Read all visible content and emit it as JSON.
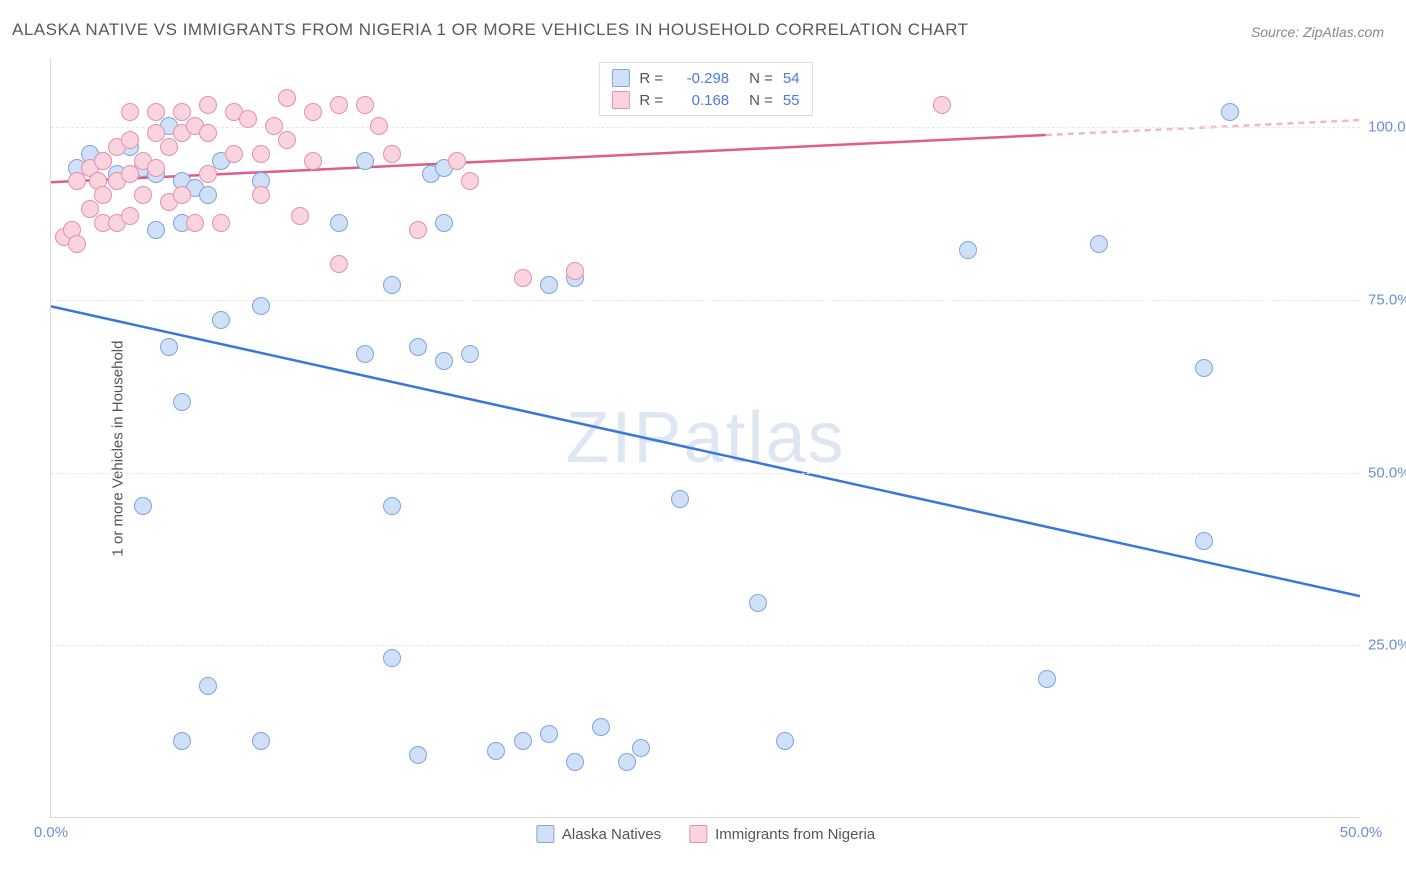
{
  "title": "ALASKA NATIVE VS IMMIGRANTS FROM NIGERIA 1 OR MORE VEHICLES IN HOUSEHOLD CORRELATION CHART",
  "source": "Source: ZipAtlas.com",
  "y_axis_title": "1 or more Vehicles in Household",
  "watermark": "ZIPatlas",
  "chart": {
    "type": "scatter",
    "xlim": [
      0,
      50
    ],
    "ylim": [
      0,
      110
    ],
    "x_ticks": [
      {
        "v": 0,
        "label": "0.0%"
      },
      {
        "v": 50,
        "label": "50.0%"
      }
    ],
    "y_ticks": [
      {
        "v": 25,
        "label": "25.0%"
      },
      {
        "v": 50,
        "label": "50.0%"
      },
      {
        "v": 75,
        "label": "75.0%"
      },
      {
        "v": 100,
        "label": "100.0%"
      }
    ],
    "background_color": "#ffffff",
    "grid_color": "#e8e8e8",
    "marker_radius": 9,
    "series": [
      {
        "name": "Alaska Natives",
        "fill": "#cfe0f7",
        "stroke": "#7da5e0",
        "trend_color": "#3a78d8",
        "trend_dash_color": "#a9c5ef",
        "trend_width": 2.5,
        "R": "-0.298",
        "N": "54",
        "trend": {
          "x1": 0,
          "y1": 74,
          "x2": 50,
          "y2": 32,
          "x_solid_end": 50
        },
        "points": [
          [
            1,
            94
          ],
          [
            1.5,
            96
          ],
          [
            2,
            95
          ],
          [
            2.5,
            93
          ],
          [
            3,
            97
          ],
          [
            3.5,
            94
          ],
          [
            4,
            93
          ],
          [
            4.5,
            100
          ],
          [
            5,
            92
          ],
          [
            4,
            85
          ],
          [
            5,
            86
          ],
          [
            5.5,
            91
          ],
          [
            6,
            90
          ],
          [
            6.5,
            95
          ],
          [
            8,
            92
          ],
          [
            12,
            95
          ],
          [
            14.5,
            93
          ],
          [
            15,
            94
          ],
          [
            11,
            86
          ],
          [
            15,
            86
          ],
          [
            3.5,
            45
          ],
          [
            6,
            19
          ],
          [
            5,
            60
          ],
          [
            4.5,
            68
          ],
          [
            6.5,
            72
          ],
          [
            8,
            74
          ],
          [
            5,
            11
          ],
          [
            8,
            11
          ],
          [
            12,
            67
          ],
          [
            13,
            77
          ],
          [
            14,
            68
          ],
          [
            13,
            23
          ],
          [
            13,
            45
          ],
          [
            15,
            66
          ],
          [
            16,
            67
          ],
          [
            14,
            9
          ],
          [
            17,
            9.5
          ],
          [
            18,
            11
          ],
          [
            19,
            77
          ],
          [
            19,
            12
          ],
          [
            20,
            78
          ],
          [
            20,
            8
          ],
          [
            21,
            13
          ],
          [
            22,
            8
          ],
          [
            22.5,
            10
          ],
          [
            24,
            46
          ],
          [
            27,
            31
          ],
          [
            28,
            11
          ],
          [
            35,
            82
          ],
          [
            38,
            20
          ],
          [
            40,
            83
          ],
          [
            44,
            65
          ],
          [
            44,
            40
          ],
          [
            45,
            102
          ]
        ]
      },
      {
        "name": "Immigrants from Nigeria",
        "fill": "#f9d3de",
        "stroke": "#e78fb0",
        "trend_color": "#e05c8a",
        "trend_dash_color": "#f2b5ca",
        "trend_width": 2.5,
        "R": "0.168",
        "N": "55",
        "trend": {
          "x1": 0,
          "y1": 92,
          "x2": 50,
          "y2": 101,
          "x_solid_end": 38
        },
        "points": [
          [
            0.5,
            84
          ],
          [
            0.8,
            85
          ],
          [
            1,
            83
          ],
          [
            1,
            92
          ],
          [
            1.5,
            94
          ],
          [
            1.5,
            88
          ],
          [
            1.8,
            92
          ],
          [
            2,
            95
          ],
          [
            2,
            90
          ],
          [
            2,
            86
          ],
          [
            2.5,
            97
          ],
          [
            2.5,
            92
          ],
          [
            2.5,
            86
          ],
          [
            3,
            102
          ],
          [
            3,
            98
          ],
          [
            3,
            93
          ],
          [
            3,
            87
          ],
          [
            3.5,
            95
          ],
          [
            3.5,
            90
          ],
          [
            4,
            102
          ],
          [
            4,
            99
          ],
          [
            4,
            94
          ],
          [
            4.5,
            97
          ],
          [
            4.5,
            89
          ],
          [
            5,
            102
          ],
          [
            5,
            99
          ],
          [
            5,
            90
          ],
          [
            5.5,
            100
          ],
          [
            5.5,
            86
          ],
          [
            6,
            103
          ],
          [
            6,
            99
          ],
          [
            6,
            93
          ],
          [
            6.5,
            86
          ],
          [
            7,
            102
          ],
          [
            7,
            96
          ],
          [
            7.5,
            101
          ],
          [
            8,
            96
          ],
          [
            8,
            90
          ],
          [
            8.5,
            100
          ],
          [
            9,
            104
          ],
          [
            9,
            98
          ],
          [
            9.5,
            87
          ],
          [
            10,
            102
          ],
          [
            10,
            95
          ],
          [
            11,
            103
          ],
          [
            11,
            80
          ],
          [
            12,
            103
          ],
          [
            12.5,
            100
          ],
          [
            13,
            96
          ],
          [
            14,
            85
          ],
          [
            15.5,
            95
          ],
          [
            16,
            92
          ],
          [
            18,
            78
          ],
          [
            20,
            79
          ],
          [
            34,
            103
          ]
        ]
      }
    ]
  },
  "legend_bottom": [
    {
      "swatch_fill": "#cfe0f7",
      "swatch_stroke": "#7da5e0",
      "label": "Alaska Natives"
    },
    {
      "swatch_fill": "#f9d3de",
      "swatch_stroke": "#e78fb0",
      "label": "Immigrants from Nigeria"
    }
  ]
}
